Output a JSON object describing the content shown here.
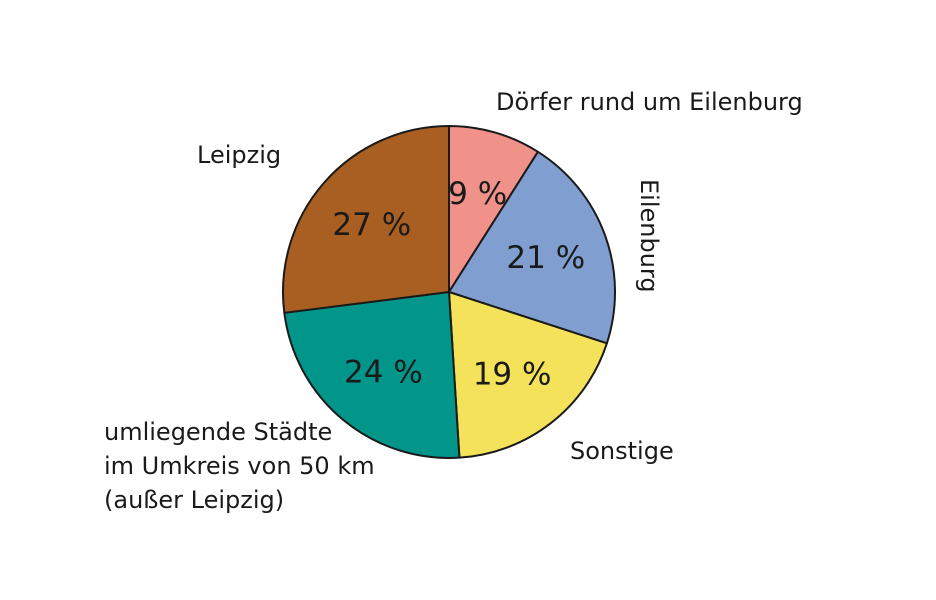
{
  "chart_data": {
    "type": "pie",
    "title": "",
    "slices": [
      {
        "name": "Dörfer rund um Eilenburg",
        "value": 9,
        "value_label": "9 %",
        "color": "#f0928a"
      },
      {
        "name": "Eilenburg",
        "value": 21,
        "value_label": "21 %",
        "color": "#809fd0"
      },
      {
        "name": "Sonstige",
        "value": 19,
        "value_label": "19 %",
        "color": "#f4e35a"
      },
      {
        "name": "umliegende Städte im Umkreis von 50 km (außer Leipzig)",
        "value": 24,
        "value_label": "24 %",
        "color": "#02968a"
      },
      {
        "name": "Leipzig",
        "value": 27,
        "value_label": "27 %",
        "color": "#a95f22"
      }
    ],
    "start_angle": "12 o'clock",
    "direction": "clockwise",
    "outline_color": "#1a1a1a",
    "labels": {
      "doerfer": "Dörfer rund um Eilenburg",
      "eilenburg": "Eilenburg",
      "sonstige": "Sonstige",
      "umliegende_line1": "umliegende Städte",
      "umliegende_line2": "im Umkreis von 50 km",
      "umliegende_line3": "(außer Leipzig)",
      "leipzig": "Leipzig"
    }
  }
}
